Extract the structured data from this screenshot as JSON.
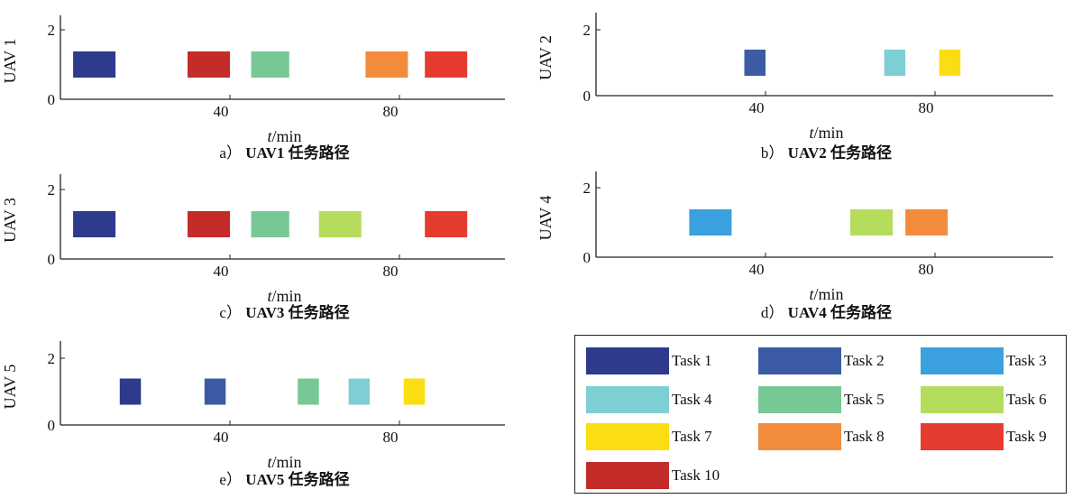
{
  "x_unit": {
    "var": "t",
    "unit": "/min"
  },
  "chart_data": [
    {
      "type": "gantt",
      "ylabel": "UAV 1",
      "xlabel": "t/min",
      "caption": {
        "letter": "a）",
        "text": "UAV1 任务路径"
      },
      "xticks": [
        40,
        80
      ],
      "yticks": [
        0,
        2
      ],
      "xlim": [
        0,
        105
      ],
      "ylim": [
        0,
        2
      ],
      "bars": [
        {
          "task": "Task 1",
          "start": 3,
          "end": 13
        },
        {
          "task": "Task 10",
          "start": 30,
          "end": 40
        },
        {
          "task": "Task 5",
          "start": 45,
          "end": 54
        },
        {
          "task": "Task 8",
          "start": 72,
          "end": 82
        },
        {
          "task": "Task 9",
          "start": 86,
          "end": 96
        }
      ]
    },
    {
      "type": "gantt",
      "ylabel": "UAV 2",
      "xlabel": "t/min",
      "caption": {
        "letter": "b）",
        "text": "UAV2 任务路径"
      },
      "xticks": [
        40,
        80
      ],
      "yticks": [
        0,
        2
      ],
      "xlim": [
        0,
        105
      ],
      "ylim": [
        0,
        2
      ],
      "bars": [
        {
          "task": "Task 2",
          "start": 35,
          "end": 40
        },
        {
          "task": "Task 4",
          "start": 68,
          "end": 73
        },
        {
          "task": "Task 7",
          "start": 81,
          "end": 86
        }
      ]
    },
    {
      "type": "gantt",
      "ylabel": "UAV 3",
      "xlabel": "t/min",
      "caption": {
        "letter": "c）",
        "text": "UAV3 任务路径"
      },
      "xticks": [
        40,
        80
      ],
      "yticks": [
        0,
        2
      ],
      "xlim": [
        0,
        105
      ],
      "ylim": [
        0,
        2
      ],
      "bars": [
        {
          "task": "Task 1",
          "start": 3,
          "end": 13
        },
        {
          "task": "Task 10",
          "start": 30,
          "end": 40
        },
        {
          "task": "Task 5",
          "start": 45,
          "end": 54
        },
        {
          "task": "Task 6",
          "start": 61,
          "end": 71
        },
        {
          "task": "Task 9",
          "start": 86,
          "end": 96
        }
      ]
    },
    {
      "type": "gantt",
      "ylabel": "UAV 4",
      "xlabel": "t/min",
      "caption": {
        "letter": "d）",
        "text": "UAV4 任务路径"
      },
      "xticks": [
        40,
        80
      ],
      "yticks": [
        0,
        2
      ],
      "xlim": [
        0,
        105
      ],
      "ylim": [
        0,
        2
      ],
      "bars": [
        {
          "task": "Task 3",
          "start": 22,
          "end": 32
        },
        {
          "task": "Task 6",
          "start": 60,
          "end": 70
        },
        {
          "task": "Task 8",
          "start": 73,
          "end": 83
        }
      ]
    },
    {
      "type": "gantt",
      "ylabel": "UAV 5",
      "xlabel": "t/min",
      "caption": {
        "letter": "e）",
        "text": "UAV5 任务路径"
      },
      "xticks": [
        40,
        80
      ],
      "yticks": [
        0,
        2
      ],
      "xlim": [
        0,
        105
      ],
      "ylim": [
        0,
        2
      ],
      "bars": [
        {
          "task": "Task 1",
          "start": 14,
          "end": 19
        },
        {
          "task": "Task 2",
          "start": 34,
          "end": 39
        },
        {
          "task": "Task 5",
          "start": 56,
          "end": 61
        },
        {
          "task": "Task 4",
          "start": 68,
          "end": 73
        },
        {
          "task": "Task 7",
          "start": 81,
          "end": 86
        }
      ]
    }
  ],
  "legend": [
    {
      "name": "Task 1",
      "color": "#2e3a8c"
    },
    {
      "name": "Task 2",
      "color": "#3b5ba5"
    },
    {
      "name": "Task 3",
      "color": "#3aa0de"
    },
    {
      "name": "Task 4",
      "color": "#7ecfd4"
    },
    {
      "name": "Task 5",
      "color": "#78c896"
    },
    {
      "name": "Task 6",
      "color": "#b6dc5e"
    },
    {
      "name": "Task 7",
      "color": "#fbdd13"
    },
    {
      "name": "Task 8",
      "color": "#f28c3c"
    },
    {
      "name": "Task 9",
      "color": "#e63c30"
    },
    {
      "name": "Task 10",
      "color": "#c42c2a"
    }
  ]
}
